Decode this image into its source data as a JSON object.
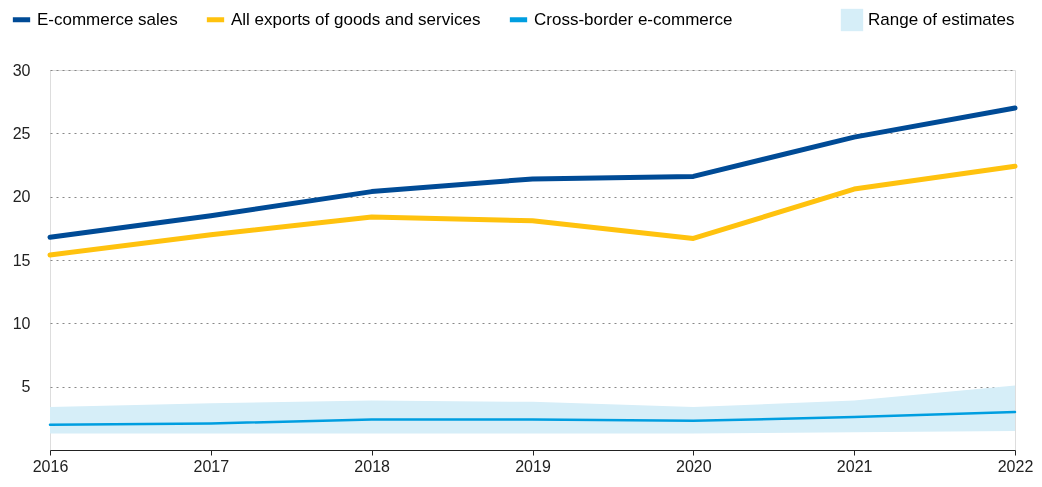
{
  "chart_data": {
    "type": "line",
    "categories": [
      "2016",
      "2017",
      "2018",
      "2019",
      "2020",
      "2021",
      "2022"
    ],
    "series": [
      {
        "name": "E-commerce sales",
        "color": "#004b96",
        "values": [
          16.8,
          18.5,
          20.4,
          21.4,
          21.6,
          24.7,
          27.0
        ]
      },
      {
        "name": "All exports of goods and services",
        "color": "#ffc20e",
        "values": [
          15.4,
          17.0,
          18.4,
          18.1,
          16.7,
          20.6,
          22.4
        ]
      },
      {
        "name": "Cross-border e-commerce",
        "color": "#009ee0",
        "values": [
          2.0,
          2.1,
          2.4,
          2.4,
          2.3,
          2.6,
          3.0
        ]
      },
      {
        "name": "Range of estimates",
        "type": "area",
        "color": "#d6eef8",
        "values": [
          null,
          null,
          null,
          null,
          null,
          null,
          null
        ],
        "lower": [
          1.3,
          1.3,
          1.3,
          1.3,
          1.3,
          1.4,
          1.5
        ],
        "upper": [
          3.4,
          3.7,
          3.9,
          3.8,
          3.4,
          3.9,
          5.1
        ]
      }
    ],
    "ylim": [
      0,
      30
    ],
    "yticks": [
      5,
      10,
      15,
      20,
      25,
      30
    ],
    "grid": "y",
    "legend": "top"
  }
}
